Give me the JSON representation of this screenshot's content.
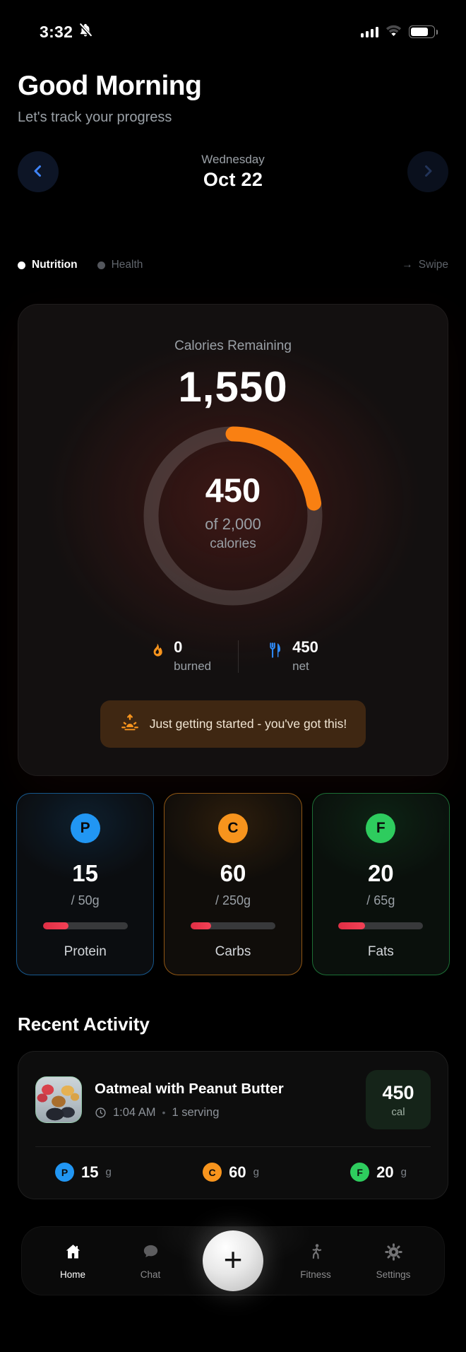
{
  "status_bar": {
    "time": "3:32"
  },
  "header": {
    "greeting": "Good Morning",
    "subtitle": "Let's track your progress"
  },
  "date_nav": {
    "weekday": "Wednesday",
    "date": "Oct 22"
  },
  "tabs": {
    "nutrition": "Nutrition",
    "health": "Health",
    "swipe_arrow": "→",
    "swipe": "Swipe"
  },
  "calories": {
    "title": "Calories Remaining",
    "remaining": "1,550",
    "consumed": "450",
    "goal_line": "of 2,000",
    "unit_line": "calories",
    "percent": 22.5,
    "burned": {
      "value": "0",
      "label": "burned"
    },
    "net": {
      "value": "450",
      "label": "net"
    },
    "banner": "Just getting started - you've got this!"
  },
  "macros": [
    {
      "letter": "P",
      "value": "15",
      "goal": "/ 50g",
      "label": "Protein",
      "percent": 30
    },
    {
      "letter": "C",
      "value": "60",
      "goal": "/ 250g",
      "label": "Carbs",
      "percent": 24
    },
    {
      "letter": "F",
      "value": "20",
      "goal": "/ 65g",
      "label": "Fats",
      "percent": 31
    }
  ],
  "recent_activity": {
    "title": "Recent Activity",
    "item": {
      "name": "Oatmeal with Peanut Butter",
      "time": "1:04 AM",
      "separator": "•",
      "serving": "1 serving",
      "calories": "450",
      "cal_unit": "cal",
      "macros": [
        {
          "letter": "P",
          "value": "15",
          "unit": "g"
        },
        {
          "letter": "C",
          "value": "60",
          "unit": "g"
        },
        {
          "letter": "F",
          "value": "20",
          "unit": "g"
        }
      ]
    }
  },
  "bottom_nav": {
    "plus": "+",
    "items": [
      {
        "label": "Home"
      },
      {
        "label": "Chat"
      },
      {
        "label": "Fitness"
      },
      {
        "label": "Settings"
      }
    ]
  },
  "colors": {
    "ring_orange": "#f98012",
    "protein_blue": "#2196f3",
    "carbs_orange": "#f7941d",
    "fats_green": "#2ecc5e",
    "progress_red": "#ef3e50",
    "net_blue": "#2f8af7",
    "banner_amber": "#f7941d"
  }
}
